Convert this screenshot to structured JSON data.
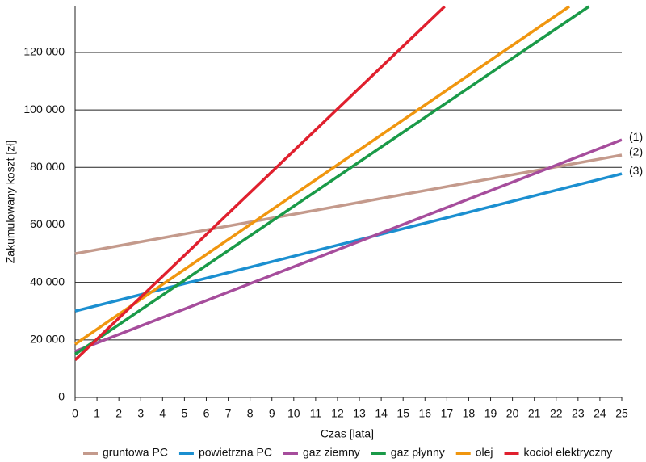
{
  "chart_data": {
    "type": "line",
    "x_label": "Czas [lata]",
    "y_label": "Zakumulowany koszt [zł]",
    "xlim": [
      0,
      25
    ],
    "xticks": [
      0,
      1,
      2,
      3,
      4,
      5,
      6,
      7,
      8,
      9,
      10,
      11,
      12,
      13,
      14,
      15,
      16,
      17,
      18,
      19,
      20,
      21,
      22,
      23,
      24,
      25
    ],
    "ylim": [
      0,
      136000
    ],
    "yticks": [
      0,
      {
        "value": 20000,
        "label": "20 000"
      },
      {
        "value": 40000,
        "label": "40 000"
      },
      {
        "value": 60000,
        "label": "60 000"
      },
      {
        "value": 80000,
        "label": "80 000"
      },
      {
        "value": 100000,
        "label": "100 000"
      },
      {
        "value": 120000,
        "label": "120 000"
      }
    ],
    "grid": true,
    "series": [
      {
        "name": "gruntowa PC",
        "color": "#c49a8c",
        "x": [
          0,
          25
        ],
        "values": [
          50000,
          84300
        ]
      },
      {
        "name": "powietrzna PC",
        "color": "#1b8fd0",
        "x": [
          0,
          25
        ],
        "values": [
          30000,
          77800
        ]
      },
      {
        "name": "gaz ziemny",
        "color": "#a64d9c",
        "x": [
          0,
          25
        ],
        "values": [
          16000,
          89600
        ]
      },
      {
        "name": "gaz płynny",
        "color": "#1a9a48",
        "x": [
          0,
          23.5
        ],
        "values": [
          15000,
          136000
        ]
      },
      {
        "name": "olej",
        "color": "#f0960f",
        "x": [
          0,
          22.6
        ],
        "values": [
          18500,
          136000
        ]
      },
      {
        "name": "kocioł elektryczny",
        "color": "#e0202e",
        "x": [
          0,
          16.9
        ],
        "values": [
          13000,
          136000
        ]
      }
    ],
    "annotations": [
      "(1)",
      "(2)",
      "(3)"
    ]
  }
}
